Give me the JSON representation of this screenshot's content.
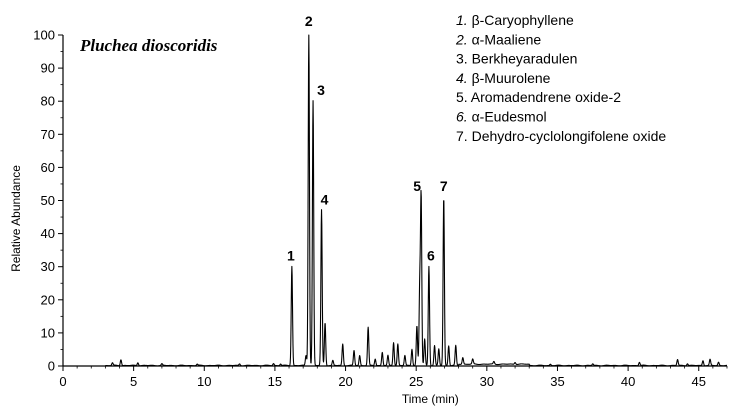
{
  "chart_data": {
    "type": "line",
    "title": "Pluchea dioscoridis",
    "xlabel": "Time (min)",
    "ylabel": "Relative Abundance",
    "xlim": [
      0,
      47
    ],
    "ylim": [
      0,
      100
    ],
    "x_ticks": [
      0,
      5,
      10,
      15,
      20,
      25,
      30,
      35,
      40,
      45
    ],
    "y_ticks": [
      0,
      10,
      20,
      30,
      40,
      50,
      60,
      70,
      80,
      90,
      100
    ],
    "grid": false,
    "legend_position": "top-right",
    "series": [
      {
        "peaks": [
          {
            "x": 3.5,
            "y": 0.8
          },
          {
            "x": 4.1,
            "y": 1.8
          },
          {
            "x": 5.3,
            "y": 0.9
          },
          {
            "x": 7.0,
            "y": 0.5
          },
          {
            "x": 9.5,
            "y": 0.4
          },
          {
            "x": 12.5,
            "y": 0.5
          },
          {
            "x": 14.9,
            "y": 0.6
          },
          {
            "x": 15.4,
            "y": 0.5
          },
          {
            "x": 16.2,
            "y": 30
          },
          {
            "x": 17.2,
            "y": 3
          },
          {
            "x": 17.4,
            "y": 100
          },
          {
            "x": 17.7,
            "y": 80
          },
          {
            "x": 18.3,
            "y": 47
          },
          {
            "x": 18.55,
            "y": 13
          },
          {
            "x": 19.1,
            "y": 1.5
          },
          {
            "x": 19.8,
            "y": 6.5
          },
          {
            "x": 20.6,
            "y": 4.5
          },
          {
            "x": 21.0,
            "y": 3
          },
          {
            "x": 21.6,
            "y": 11.5
          },
          {
            "x": 22.1,
            "y": 2
          },
          {
            "x": 22.6,
            "y": 4
          },
          {
            "x": 23.0,
            "y": 3
          },
          {
            "x": 23.4,
            "y": 7
          },
          {
            "x": 23.7,
            "y": 6.5
          },
          {
            "x": 24.2,
            "y": 3
          },
          {
            "x": 24.7,
            "y": 5
          },
          {
            "x": 25.05,
            "y": 12
          },
          {
            "x": 25.25,
            "y": 23
          },
          {
            "x": 25.35,
            "y": 51
          },
          {
            "x": 25.6,
            "y": 8
          },
          {
            "x": 25.9,
            "y": 30
          },
          {
            "x": 26.3,
            "y": 6
          },
          {
            "x": 26.6,
            "y": 5
          },
          {
            "x": 26.95,
            "y": 51
          },
          {
            "x": 27.3,
            "y": 6
          },
          {
            "x": 27.8,
            "y": 6
          },
          {
            "x": 28.3,
            "y": 2
          },
          {
            "x": 29.0,
            "y": 1.5
          },
          {
            "x": 30.5,
            "y": 0.8
          },
          {
            "x": 32.0,
            "y": 0.6
          },
          {
            "x": 34.5,
            "y": 0.4
          },
          {
            "x": 37.5,
            "y": 0.5
          },
          {
            "x": 40.8,
            "y": 1.0
          },
          {
            "x": 43.5,
            "y": 1.8
          },
          {
            "x": 44.2,
            "y": 0.6
          },
          {
            "x": 45.3,
            "y": 1.5
          },
          {
            "x": 45.8,
            "y": 1.8
          },
          {
            "x": 46.4,
            "y": 1.0
          }
        ]
      }
    ],
    "peak_labels": [
      {
        "label": "1",
        "x": 16.2,
        "y": 30
      },
      {
        "label": "2",
        "x": 17.4,
        "y": 100
      },
      {
        "label": "3",
        "x": 17.7,
        "y": 80
      },
      {
        "label": "4",
        "x": 18.3,
        "y": 47
      },
      {
        "label": "5",
        "x": 25.35,
        "y": 51
      },
      {
        "label": "6",
        "x": 25.9,
        "y": 30
      },
      {
        "label": "7",
        "x": 26.95,
        "y": 51
      }
    ],
    "legend": [
      {
        "num": "1.",
        "italic_num": true,
        "name": "β-Caryophyllene"
      },
      {
        "num": "2.",
        "italic_num": true,
        "name": "α-Maaliene"
      },
      {
        "num": "3.",
        "italic_num": false,
        "name": "Berkheyaradulen"
      },
      {
        "num": "4.",
        "italic_num": true,
        "name": "β-Muurolene"
      },
      {
        "num": "5.",
        "italic_num": false,
        "name": "Aromadendrene oxide-2"
      },
      {
        "num": "6.",
        "italic_num": true,
        "name": "α-Eudesmol"
      },
      {
        "num": "7.",
        "italic_num": false,
        "name": "Dehydro-cyclolongifolene oxide"
      }
    ]
  }
}
